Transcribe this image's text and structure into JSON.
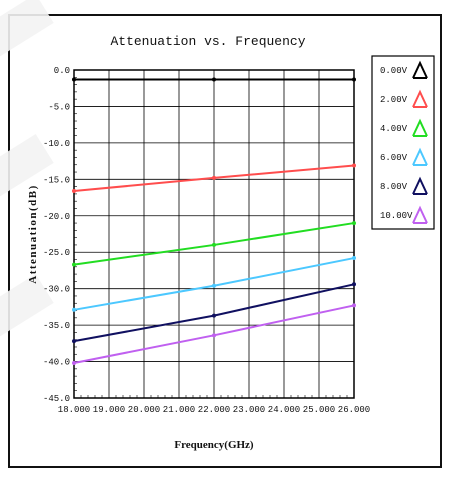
{
  "chart_data": {
    "type": "line",
    "title": "Attenuation vs. Frequency",
    "xlabel": "Frequency(GHz)",
    "ylabel": "Attenuation(dB)",
    "xlim": [
      18.0,
      26.0
    ],
    "ylim": [
      -45.0,
      0.0
    ],
    "x_ticks": [
      "18.000",
      "19.000",
      "20.000",
      "21.000",
      "22.000",
      "23.000",
      "24.000",
      "25.000",
      "26.000"
    ],
    "y_ticks": [
      "0.0",
      "-5.0",
      "-10.0",
      "-15.0",
      "-20.0",
      "-25.0",
      "-30.0",
      "-35.0",
      "-40.0",
      "-45.0"
    ],
    "grid": true,
    "legend_position": "right",
    "x": [
      18.0,
      22.0,
      26.0
    ],
    "series": [
      {
        "name": "0.00V",
        "values": [
          -1.3,
          -1.3,
          -1.3
        ],
        "color": "#000000"
      },
      {
        "name": "2.00V",
        "values": [
          -16.6,
          -14.8,
          -13.1
        ],
        "color": "#ff4d4d"
      },
      {
        "name": "4.00V",
        "values": [
          -26.7,
          -24.0,
          -21.0
        ],
        "color": "#22dd22"
      },
      {
        "name": "6.00V",
        "values": [
          -32.9,
          -29.6,
          -25.8
        ],
        "color": "#4cc8ff"
      },
      {
        "name": "8.00V",
        "values": [
          -37.2,
          -33.7,
          -29.4
        ],
        "color": "#101060"
      },
      {
        "name": "10.00V",
        "values": [
          -40.2,
          -36.4,
          -32.3
        ],
        "color": "#c060f0"
      }
    ]
  }
}
